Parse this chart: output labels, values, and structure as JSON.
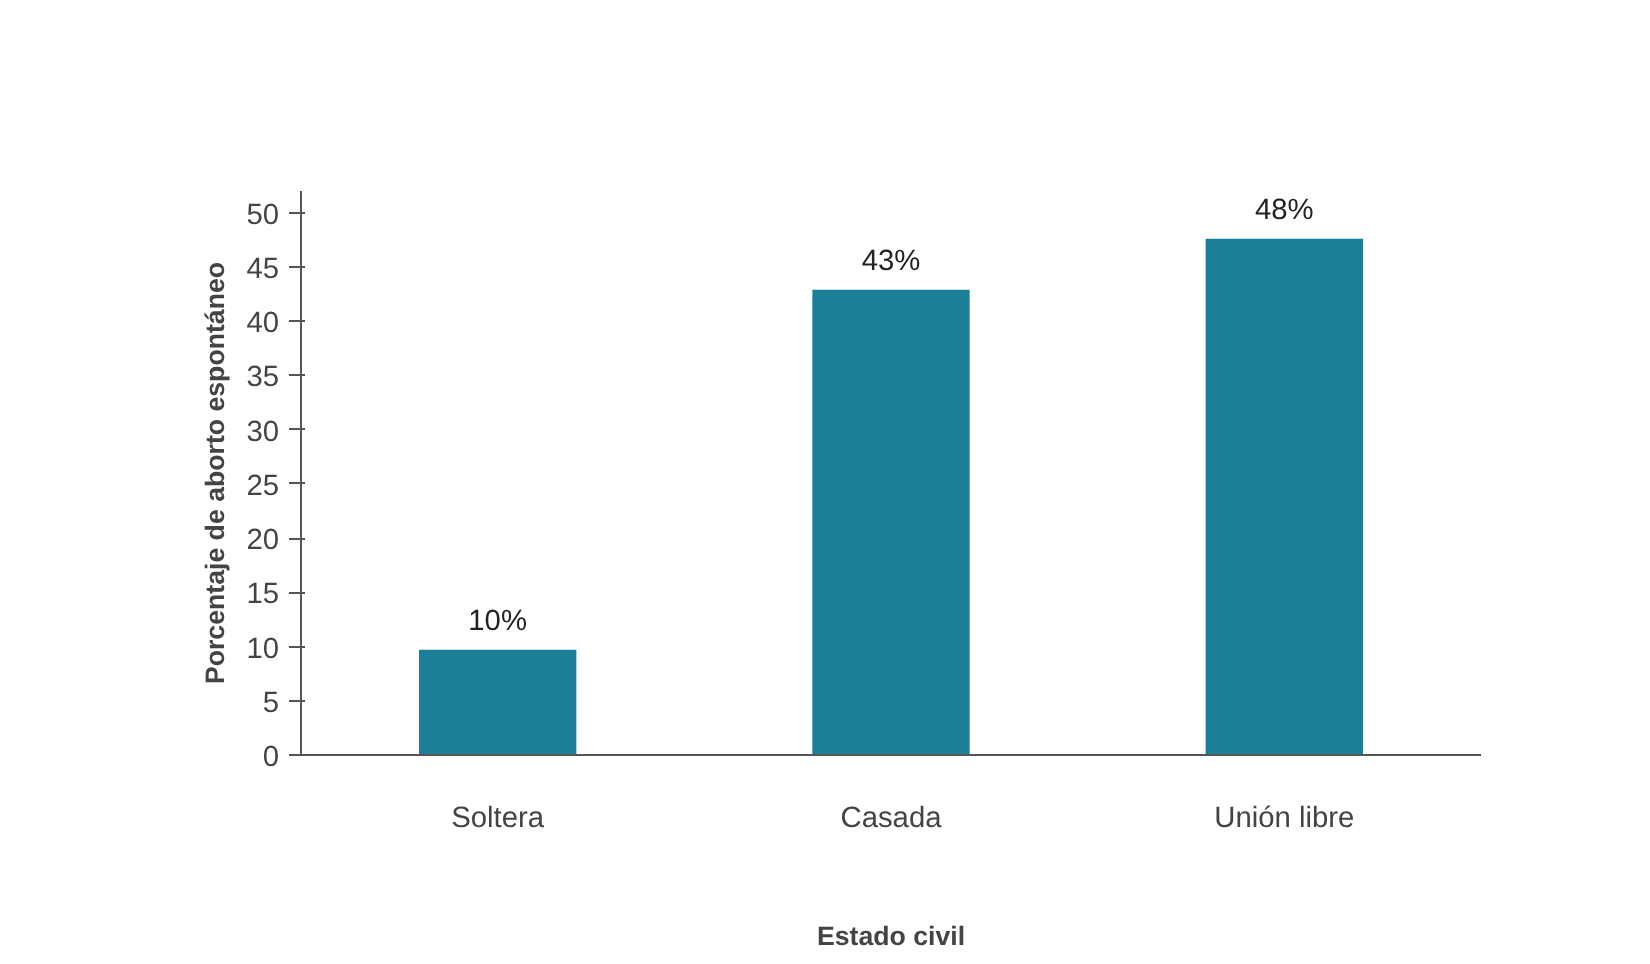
{
  "chart_data": {
    "type": "bar",
    "xlabel": "Estado civil",
    "ylabel": "Porcentaje de aborto espontáneo",
    "categories": [
      "Soltera",
      "Casada",
      "Unión libre"
    ],
    "values": [
      9.7,
      42.9,
      47.6
    ],
    "value_labels": [
      "10%",
      "43%",
      "48%"
    ],
    "color": "#1a7f97",
    "ylim": [
      0,
      52
    ],
    "yticks": [
      0,
      5,
      10,
      15,
      20,
      25,
      30,
      35,
      40,
      45,
      50
    ],
    "grid": false
  }
}
